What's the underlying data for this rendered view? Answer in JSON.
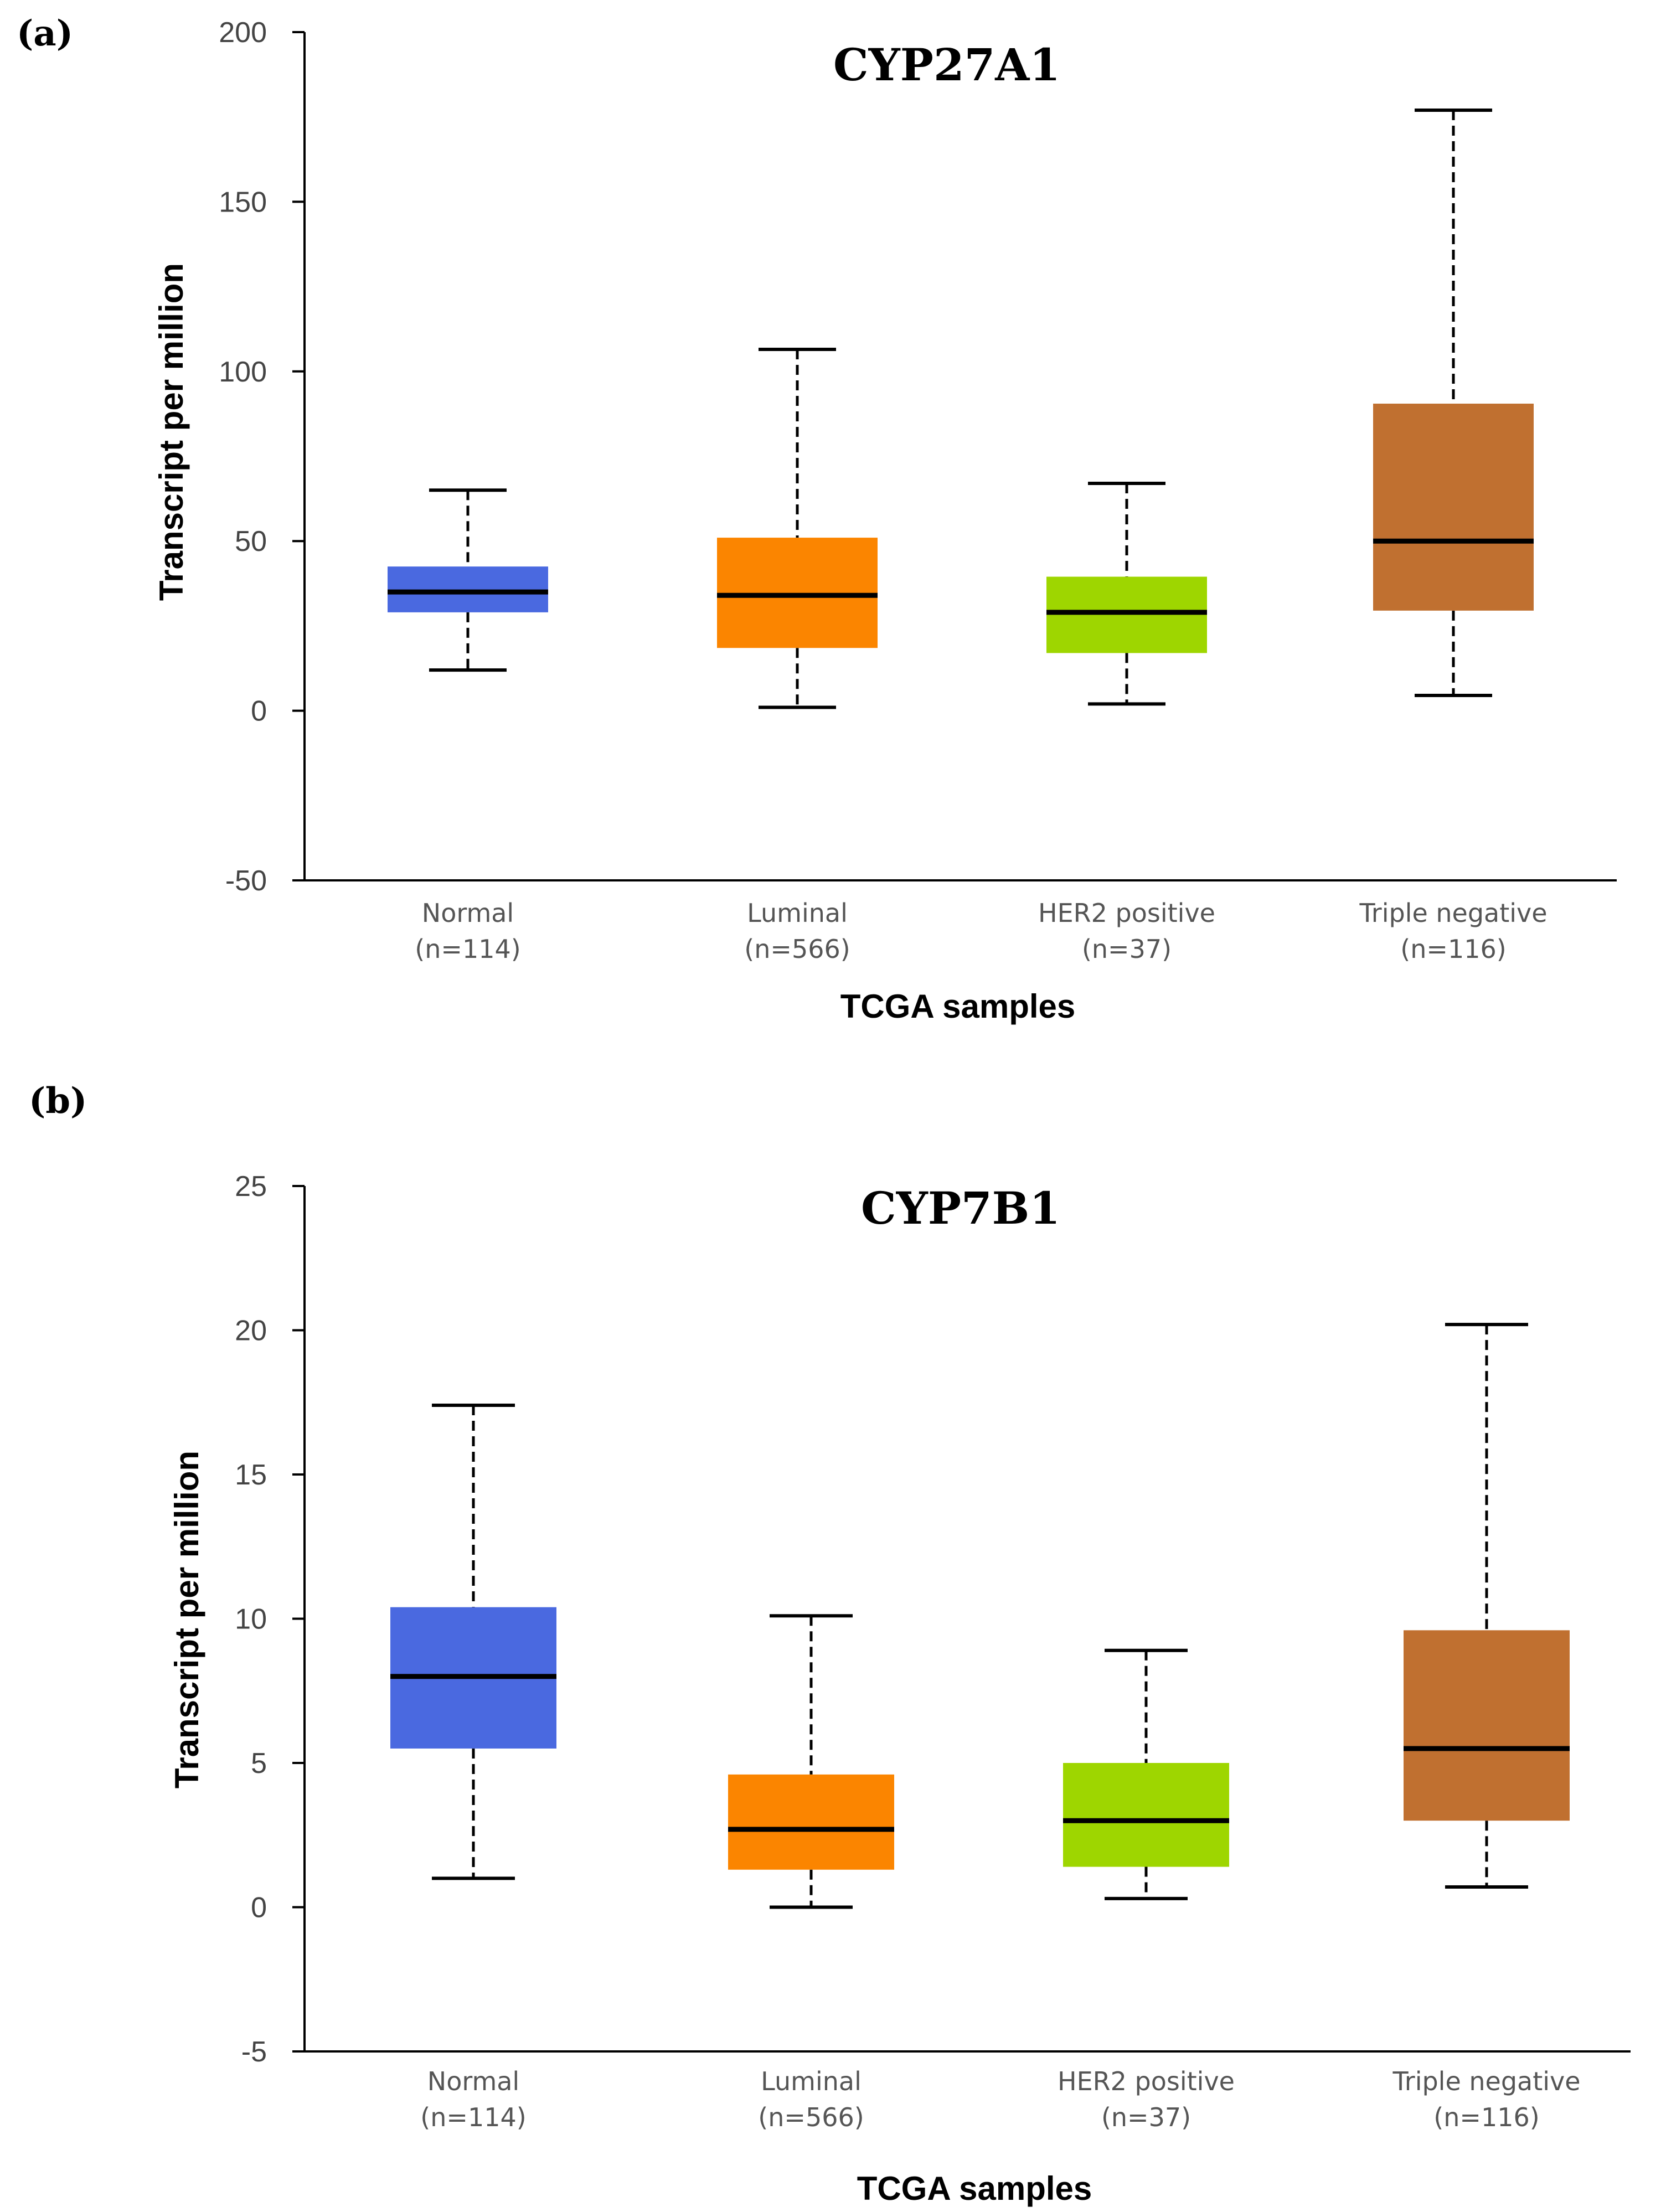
{
  "chart_data": [
    {
      "panel": "(a)",
      "type": "box",
      "title": "CYP27A1",
      "xlabel": "TCGA samples",
      "ylabel": "Transcript per million",
      "ylim": [
        -50,
        200
      ],
      "yticks": [
        200,
        150,
        100,
        50,
        0,
        -50
      ],
      "categories": [
        {
          "name": "Normal",
          "n": "(n=114)",
          "color": "#4a69e0",
          "min": 12,
          "q1": 29,
          "median": 35,
          "q3": 42.5,
          "max": 65
        },
        {
          "name": "Luminal",
          "n": "(n=566)",
          "color": "#fb8500",
          "min": 1,
          "q1": 18.5,
          "median": 34,
          "q3": 51,
          "max": 106.5
        },
        {
          "name": "HER2 positive",
          "n": "(n=37)",
          "color": "#9ed600",
          "min": 2,
          "q1": 17,
          "median": 29,
          "q3": 39.5,
          "max": 67
        },
        {
          "name": "Triple negative",
          "n": "(n=116)",
          "color": "#c07030",
          "min": 4.5,
          "q1": 29.5,
          "median": 50,
          "q3": 90.5,
          "max": 177
        }
      ]
    },
    {
      "panel": "(b)",
      "type": "box",
      "title": "CYP7B1",
      "xlabel": "TCGA samples",
      "ylabel": "Transcript per million",
      "ylim": [
        -5,
        25
      ],
      "yticks": [
        25,
        20,
        15,
        10,
        5,
        0,
        -5
      ],
      "categories": [
        {
          "name": "Normal",
          "n": "(n=114)",
          "color": "#4a69e0",
          "min": 1,
          "q1": 5.5,
          "median": 8,
          "q3": 10.4,
          "max": 17.4
        },
        {
          "name": "Luminal",
          "n": "(n=566)",
          "color": "#fb8500",
          "min": 0,
          "q1": 1.3,
          "median": 2.7,
          "q3": 4.6,
          "max": 10.1
        },
        {
          "name": "HER2 positive",
          "n": "(n=37)",
          "color": "#9ed600",
          "min": 0.3,
          "q1": 1.4,
          "median": 3,
          "q3": 5,
          "max": 8.9
        },
        {
          "name": "Triple negative",
          "n": "(n=116)",
          "color": "#c07030",
          "min": 0.7,
          "q1": 3,
          "median": 5.5,
          "q3": 9.6,
          "max": 20.2
        }
      ]
    }
  ]
}
